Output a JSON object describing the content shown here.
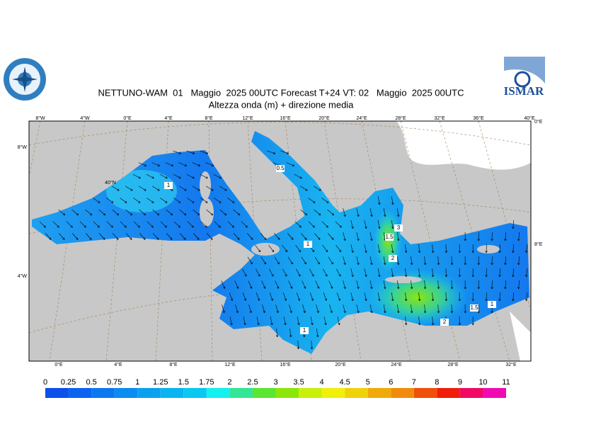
{
  "header": {
    "title": "NETTUNO-WAM  01   Maggio  2025 00UTC Forecast T+24 VT: 02   Maggio  2025 00UTC",
    "subtitle": "Altezza onda (m) + direzione media",
    "logo_right": "ISMAR"
  },
  "map": {
    "top_labels": [
      "8°W",
      "4°W",
      "0°E",
      "4°E",
      "8°E",
      "12°E",
      "16°E",
      "20°E",
      "24°E",
      "28°E",
      "32°E",
      "36°E",
      "40°E"
    ],
    "bottom_labels": [
      "0°E",
      "4°E",
      "8°E",
      "12°E",
      "16°E",
      "20°E",
      "24°E",
      "28°E",
      "32°E"
    ],
    "left_labels": [
      "8°W",
      "40°N",
      "4°W"
    ],
    "right_labels": [
      "0°E",
      "8°E"
    ],
    "contour_labels": [
      1,
      0.5,
      1,
      1.5,
      3,
      2,
      1.5,
      1,
      2,
      1
    ]
  },
  "legend": {
    "levels": [
      0,
      0.25,
      0.5,
      0.75,
      1,
      1.25,
      1.5,
      1.75,
      2,
      2.5,
      3,
      3.5,
      4,
      4.5,
      5,
      6,
      7,
      8,
      9,
      10,
      11
    ],
    "colors": [
      "#0a50eb",
      "#0a64f0",
      "#0a78f0",
      "#0a8cf0",
      "#0aa0f0",
      "#0ab4f0",
      "#0ac8f0",
      "#14f0f0",
      "#32e696",
      "#5ae632",
      "#8ce60a",
      "#c8f00a",
      "#f0f00a",
      "#f0d20a",
      "#f0aa0a",
      "#f08c0a",
      "#f0500a",
      "#f01e0a",
      "#f00a64",
      "#f00ab4"
    ]
  }
}
